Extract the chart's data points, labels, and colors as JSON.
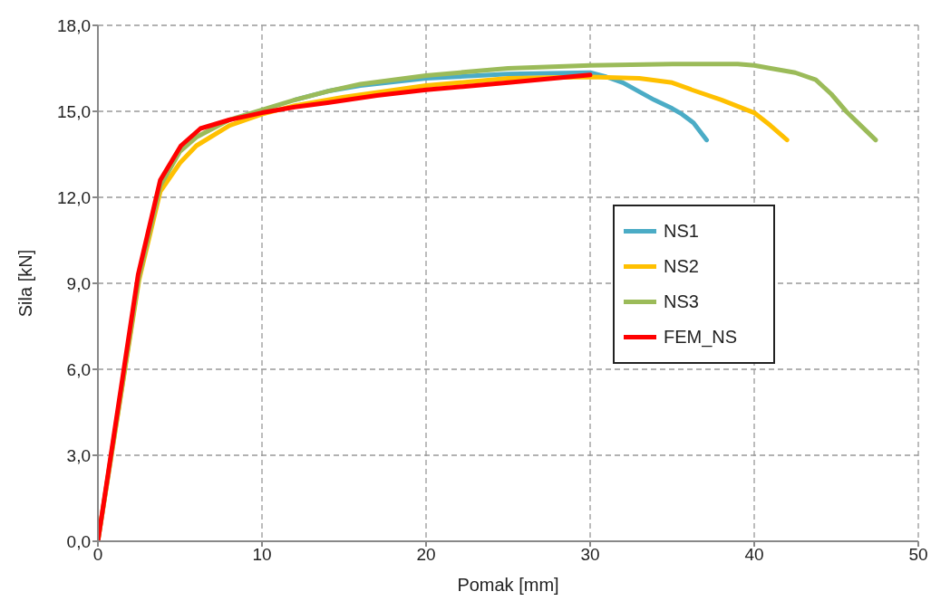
{
  "chart_data": {
    "type": "line",
    "xlabel": "Pomak [mm]",
    "ylabel": "Sila [kN]",
    "xlim": [
      0,
      50
    ],
    "xticks": [
      0,
      10,
      20,
      30,
      40,
      50
    ],
    "ylim": [
      0,
      18
    ],
    "yticks": [
      {
        "value": 0,
        "label": "0,0"
      },
      {
        "value": 3,
        "label": "3,0"
      },
      {
        "value": 6,
        "label": "6,0"
      },
      {
        "value": 9,
        "label": "9,0"
      },
      {
        "value": 12,
        "label": "12,0"
      },
      {
        "value": 15,
        "label": "15,0"
      },
      {
        "value": 18,
        "label": "18,0"
      }
    ],
    "grid": true,
    "legend": "right",
    "marker": "none",
    "line_style": "solid",
    "series": [
      {
        "name": "NS1",
        "color": "#4bacc6",
        "x": [
          12,
          14,
          16,
          20,
          25,
          30,
          31,
          32,
          33.9,
          35,
          35.6,
          36.3,
          37.1
        ],
        "values": [
          15.4,
          15.7,
          15.9,
          16.15,
          16.3,
          16.35,
          16.2,
          16.0,
          15.4,
          15.1,
          14.9,
          14.6,
          14.0
        ]
      },
      {
        "name": "NS2",
        "color": "#ffc000",
        "x": [
          0,
          2.5,
          3.8,
          5,
          6,
          8,
          10,
          12,
          15,
          20,
          25,
          30,
          33,
          35,
          36.2,
          38,
          40,
          41,
          42
        ],
        "values": [
          0,
          9.1,
          12.2,
          13.2,
          13.8,
          14.5,
          14.9,
          15.2,
          15.5,
          15.9,
          16.15,
          16.2,
          16.15,
          16.0,
          15.75,
          15.4,
          14.95,
          14.5,
          14.0
        ]
      },
      {
        "name": "NS3",
        "color": "#9bbb59",
        "x": [
          0,
          2.5,
          3.8,
          5,
          6,
          8,
          10,
          12,
          14,
          16,
          20,
          25,
          30,
          35,
          39,
          40,
          41,
          42.5,
          43.75,
          44.7,
          45.6,
          46.5,
          47.4
        ],
        "values": [
          0,
          9.2,
          12.4,
          13.6,
          14.1,
          14.7,
          15.05,
          15.4,
          15.7,
          15.95,
          16.25,
          16.5,
          16.6,
          16.65,
          16.65,
          16.6,
          16.5,
          16.35,
          16.1,
          15.6,
          15.0,
          14.5,
          14.0
        ]
      },
      {
        "name": "FEM_NS",
        "color": "#ff0000",
        "x": [
          0,
          2.45,
          3.8,
          5.06,
          6.25,
          8,
          10,
          12,
          14,
          17,
          20,
          25,
          30
        ],
        "values": [
          0,
          9.3,
          12.6,
          13.8,
          14.4,
          14.7,
          14.95,
          15.15,
          15.3,
          15.55,
          15.75,
          16.0,
          16.27
        ]
      }
    ]
  }
}
